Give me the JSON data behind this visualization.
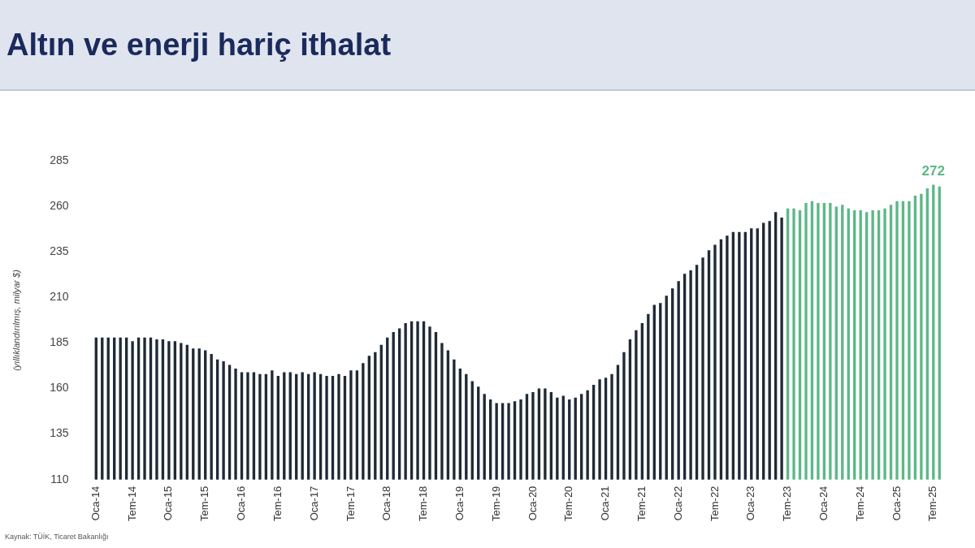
{
  "chart_data": {
    "type": "bar",
    "title": "Altın ve enerji hariç ithalat",
    "ylabel": "(yıllıklandırılmış, milyar $)",
    "categories": [
      "Oca-14",
      null,
      null,
      null,
      null,
      null,
      "Tem-14",
      null,
      null,
      null,
      null,
      null,
      "Oca-15",
      null,
      null,
      null,
      null,
      null,
      "Tem-15",
      null,
      null,
      null,
      null,
      null,
      "Oca-16",
      null,
      null,
      null,
      null,
      null,
      "Tem-16",
      null,
      null,
      null,
      null,
      null,
      "Oca-17",
      null,
      null,
      null,
      null,
      null,
      "Tem-17",
      null,
      null,
      null,
      null,
      null,
      "Oca-18",
      null,
      null,
      null,
      null,
      null,
      "Tem-18",
      null,
      null,
      null,
      null,
      null,
      "Oca-19",
      null,
      null,
      null,
      null,
      null,
      "Tem-19",
      null,
      null,
      null,
      null,
      null,
      "Oca-20",
      null,
      null,
      null,
      null,
      null,
      "Tem-20",
      null,
      null,
      null,
      null,
      null,
      "Oca-21",
      null,
      null,
      null,
      null,
      null,
      "Tem-21",
      null,
      null,
      null,
      null,
      null,
      "Oca-22",
      null,
      null,
      null,
      null,
      null,
      "Tem-22",
      null,
      null,
      null,
      null,
      null,
      "Oca-23",
      null,
      null,
      null,
      null,
      null,
      "Tem-23",
      null,
      null,
      null,
      null,
      null,
      "Oca-24",
      null,
      null,
      null,
      null,
      null,
      "Tem-24",
      null,
      null,
      null,
      null,
      null,
      "Oca-25",
      null,
      null,
      null,
      null,
      null,
      "Tem-25",
      null
    ],
    "values": [
      188,
      188,
      188,
      188,
      188,
      188,
      186,
      188,
      188,
      188,
      187,
      187,
      186,
      186,
      185,
      184,
      182,
      182,
      181,
      179,
      176,
      175,
      173,
      171,
      169,
      169,
      169,
      168,
      168,
      170,
      167,
      169,
      169,
      168,
      169,
      168,
      169,
      168,
      167,
      167,
      168,
      167,
      170,
      170,
      174,
      178,
      180,
      184,
      188,
      191,
      193,
      196,
      197,
      197,
      197,
      194,
      191,
      185,
      181,
      176,
      171,
      168,
      164,
      161,
      157,
      154,
      152,
      152,
      152,
      153,
      154,
      157,
      158,
      160,
      160,
      158,
      155,
      156,
      154,
      155,
      157,
      159,
      162,
      165,
      166,
      168,
      173,
      180,
      187,
      192,
      196,
      201,
      206,
      207,
      211,
      215,
      219,
      223,
      225,
      228,
      232,
      236,
      239,
      242,
      244,
      246,
      246,
      246,
      248,
      248,
      251,
      252,
      257,
      254,
      259,
      259,
      258,
      262,
      263,
      262,
      262,
      262,
      260,
      261,
      259,
      258,
      258,
      257,
      258,
      258,
      259,
      261,
      263,
      263,
      263,
      266,
      267,
      270,
      272,
      271
    ],
    "colors": [
      "#1f2a36",
      "#1f2a36",
      "#1f2a36",
      "#1f2a36",
      "#1f2a36",
      "#1f2a36",
      "#1f2a36",
      "#1f2a36",
      "#1f2a36",
      "#1f2a36",
      "#1f2a36",
      "#1f2a36",
      "#1f2a36",
      "#1f2a36",
      "#1f2a36",
      "#1f2a36",
      "#1f2a36",
      "#1f2a36",
      "#1f2a36",
      "#1f2a36",
      "#1f2a36",
      "#1f2a36",
      "#1f2a36",
      "#1f2a36",
      "#1f2a36",
      "#1f2a36",
      "#1f2a36",
      "#1f2a36",
      "#1f2a36",
      "#1f2a36",
      "#1f2a36",
      "#1f2a36",
      "#1f2a36",
      "#1f2a36",
      "#1f2a36",
      "#1f2a36",
      "#1f2a36",
      "#1f2a36",
      "#1f2a36",
      "#1f2a36",
      "#1f2a36",
      "#1f2a36",
      "#1f2a36",
      "#1f2a36",
      "#1f2a36",
      "#1f2a36",
      "#1f2a36",
      "#1f2a36",
      "#1f2a36",
      "#1f2a36",
      "#1f2a36",
      "#1f2a36",
      "#1f2a36",
      "#1f2a36",
      "#1f2a36",
      "#1f2a36",
      "#1f2a36",
      "#1f2a36",
      "#1f2a36",
      "#1f2a36",
      "#1f2a36",
      "#1f2a36",
      "#1f2a36",
      "#1f2a36",
      "#1f2a36",
      "#1f2a36",
      "#1f2a36",
      "#1f2a36",
      "#1f2a36",
      "#1f2a36",
      "#1f2a36",
      "#1f2a36",
      "#1f2a36",
      "#1f2a36",
      "#1f2a36",
      "#1f2a36",
      "#1f2a36",
      "#1f2a36",
      "#1f2a36",
      "#1f2a36",
      "#1f2a36",
      "#1f2a36",
      "#1f2a36",
      "#1f2a36",
      "#1f2a36",
      "#1f2a36",
      "#1f2a36",
      "#1f2a36",
      "#1f2a36",
      "#1f2a36",
      "#1f2a36",
      "#1f2a36",
      "#1f2a36",
      "#1f2a36",
      "#1f2a36",
      "#1f2a36",
      "#1f2a36",
      "#1f2a36",
      "#1f2a36",
      "#1f2a36",
      "#1f2a36",
      "#1f2a36",
      "#1f2a36",
      "#1f2a36",
      "#1f2a36",
      "#1f2a36",
      "#1f2a36",
      "#1f2a36",
      "#1f2a36",
      "#1f2a36",
      "#1f2a36",
      "#1f2a36",
      "#1f2a36",
      "#1f2a36",
      "#5cb887",
      "#5cb887",
      "#5cb887",
      "#5cb887",
      "#5cb887",
      "#5cb887",
      "#5cb887",
      "#5cb887",
      "#5cb887",
      "#5cb887",
      "#5cb887",
      "#5cb887",
      "#5cb887",
      "#5cb887",
      "#5cb887",
      "#5cb887",
      "#5cb887",
      "#5cb887",
      "#5cb887",
      "#5cb887",
      "#5cb887",
      "#5cb887",
      "#5cb887",
      "#5cb887",
      "#5cb887",
      "#5cb887"
    ],
    "ylim": [
      110,
      285
    ],
    "yticks": [
      110,
      135,
      160,
      185,
      210,
      235,
      260,
      285
    ],
    "grid": false,
    "legend": false,
    "annotations": [
      {
        "text": "272",
        "x": "Tem-25",
        "y": 272
      },
      "Kaynak: TÜİK, Ticaret Bakanlığı"
    ]
  }
}
